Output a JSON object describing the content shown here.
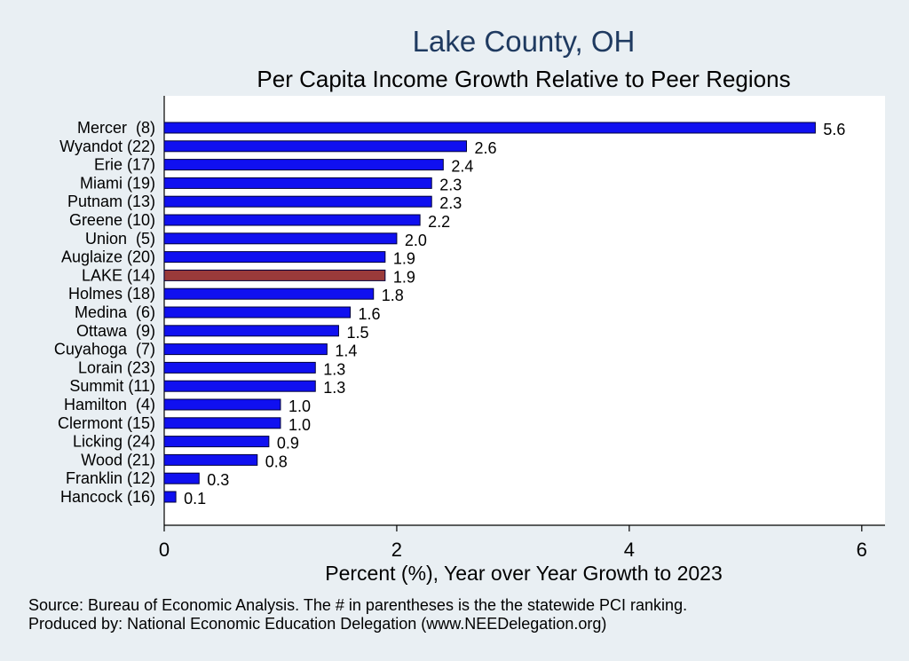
{
  "chart_data": {
    "type": "bar",
    "orientation": "horizontal",
    "title": "Lake County, OH",
    "subtitle": "Per Capita Income Growth Relative to Peer Regions",
    "xlabel": "Percent (%), Year over Year Growth to 2023",
    "ylabel": "",
    "xlim": [
      0,
      6.2
    ],
    "xticks": [
      0,
      2,
      4,
      6
    ],
    "grid": false,
    "categories": [
      "Mercer  (8)",
      "Wyandot (22)",
      "Erie (17)",
      "Miami (19)",
      "Putnam (13)",
      "Greene (10)",
      "Union  (5)",
      "Auglaize (20)",
      "LAKE (14)",
      "Holmes (18)",
      "Medina  (6)",
      "Ottawa  (9)",
      "Cuyahoga  (7)",
      "Lorain (23)",
      "Summit (11)",
      "Hamilton  (4)",
      "Clermont (15)",
      "Licking (24)",
      "Wood (21)",
      "Franklin (12)",
      "Hancock (16)"
    ],
    "values": [
      5.6,
      2.6,
      2.4,
      2.3,
      2.3,
      2.2,
      2.0,
      1.9,
      1.9,
      1.8,
      1.6,
      1.5,
      1.4,
      1.3,
      1.3,
      1.0,
      1.0,
      0.9,
      0.8,
      0.3,
      0.1
    ],
    "value_labels": [
      "5.6",
      "2.6",
      "2.4",
      "2.3",
      "2.3",
      "2.2",
      "2.0",
      "1.9",
      "1.9",
      "1.8",
      "1.6",
      "1.5",
      "1.4",
      "1.3",
      "1.3",
      "1.0",
      "1.0",
      "0.9",
      "0.8",
      "0.3",
      "0.1"
    ],
    "highlight_index": 8,
    "colors": {
      "bar": "#1010f0",
      "highlight": "#9a3a3a",
      "outline": "#00003a",
      "title": "#1f3a60",
      "background": "#e9eff3",
      "plot_background": "#ffffff"
    }
  },
  "footer": {
    "source": "Source: Bureau of Economic Analysis. The # in parentheses is the the statewide PCI ranking.",
    "produced_by": "Produced by: National Economic Education Delegation (www.NEEDelegation.org)"
  }
}
